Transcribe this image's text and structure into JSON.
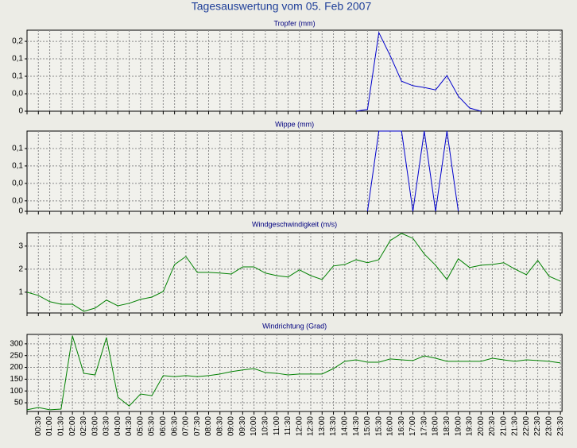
{
  "title": "Tagesauswertung vom 05. Feb 2007",
  "chart_data": [
    {
      "type": "line",
      "title": "Tropfer (mm)",
      "color": "#0000cc",
      "grid": true,
      "ylim": [
        0,
        0.232
      ],
      "yticks": [
        0,
        {
          "value": 0.05,
          "label": "0,0"
        },
        {
          "value": 0.1,
          "label": "0,1"
        },
        {
          "value": 0.15,
          "label": "0,1"
        },
        {
          "value": 0.2,
          "label": "0,2"
        }
      ],
      "values": [
        null,
        null,
        null,
        null,
        null,
        null,
        null,
        null,
        null,
        null,
        null,
        null,
        null,
        null,
        null,
        null,
        null,
        null,
        null,
        null,
        null,
        null,
        null,
        null,
        null,
        null,
        null,
        null,
        null,
        0,
        0.005,
        0.225,
        0.159,
        0.086,
        0.073,
        0.068,
        0.061,
        0.102,
        0.043,
        0.009,
        0,
        null,
        null,
        null,
        null,
        null,
        null,
        null
      ]
    },
    {
      "type": "line",
      "title": "Wippe (mm)",
      "color": "#0000cc",
      "grid": true,
      "ylim": [
        0,
        0.115
      ],
      "yticks": [
        0,
        {
          "value": 0.015,
          "label": "0,0"
        },
        {
          "value": 0.04,
          "label": "0,0"
        },
        {
          "value": 0.065,
          "label": "0,1"
        },
        {
          "value": 0.09,
          "label": "0,1"
        }
      ],
      "values": [
        null,
        null,
        null,
        null,
        null,
        null,
        null,
        null,
        null,
        null,
        null,
        null,
        null,
        null,
        null,
        null,
        null,
        null,
        null,
        null,
        null,
        null,
        null,
        null,
        null,
        null,
        null,
        null,
        null,
        null,
        0,
        0.115,
        0.115,
        0.115,
        0,
        0.115,
        0,
        0.115,
        0,
        null,
        null,
        null,
        null,
        null,
        null,
        null,
        null,
        null
      ]
    },
    {
      "type": "line",
      "title": "Windgeschwindigkeit (m/s)",
      "color": "#008000",
      "grid": true,
      "ylim": [
        0.1,
        3.58
      ],
      "yticks": [
        1,
        2,
        3
      ],
      "values": [
        1.0,
        0.86,
        0.59,
        0.48,
        0.48,
        0.17,
        0.31,
        0.66,
        0.41,
        0.52,
        0.69,
        0.79,
        1.03,
        2.2,
        2.55,
        1.86,
        1.86,
        1.83,
        1.79,
        2.1,
        2.1,
        1.83,
        1.72,
        1.66,
        1.97,
        1.72,
        1.55,
        2.14,
        2.2,
        2.41,
        2.28,
        2.41,
        3.24,
        3.55,
        3.34,
        2.66,
        2.17,
        1.55,
        2.45,
        2.07,
        2.17,
        2.2,
        2.28,
        2.0,
        1.76,
        2.38,
        1.69,
        1.48
      ]
    },
    {
      "type": "line",
      "title": "Windrichtung (Grad)",
      "color": "#008000",
      "grid": true,
      "ylim": [
        13,
        340
      ],
      "yticks": [
        50,
        100,
        150,
        200,
        250,
        300
      ],
      "x": [
        null,
        "00:30",
        "01:00",
        "01:30",
        "02:00",
        "02:30",
        "03:00",
        "03:30",
        "04:00",
        "04:30",
        "05:00",
        "05:30",
        "06:00",
        "06:30",
        "07:00",
        "07:30",
        "08:00",
        "08:30",
        "09:00",
        "09:30",
        "10:00",
        "10:30",
        "11:00",
        "11:30",
        "12:00",
        "12:30",
        "13:00",
        "13:30",
        "14:00",
        "14:30",
        "15:00",
        "15:30",
        "16:00",
        "16:30",
        "17:00",
        "17:30",
        "18:00",
        "18:30",
        "19:00",
        "19:30",
        "20:00",
        "20:30",
        "21:00",
        "21:30",
        "22:00",
        "22:30",
        "23:00",
        "23:30"
      ],
      "values": [
        20,
        30,
        20,
        23,
        334,
        175,
        168,
        327,
        74,
        36,
        87,
        80,
        165,
        161,
        165,
        161,
        165,
        172,
        182,
        189,
        195,
        178,
        175,
        168,
        172,
        172,
        172,
        195,
        226,
        232,
        222,
        222,
        236,
        232,
        229,
        249,
        239,
        226,
        226,
        226,
        226,
        239,
        232,
        226,
        232,
        229,
        226,
        219
      ]
    }
  ]
}
